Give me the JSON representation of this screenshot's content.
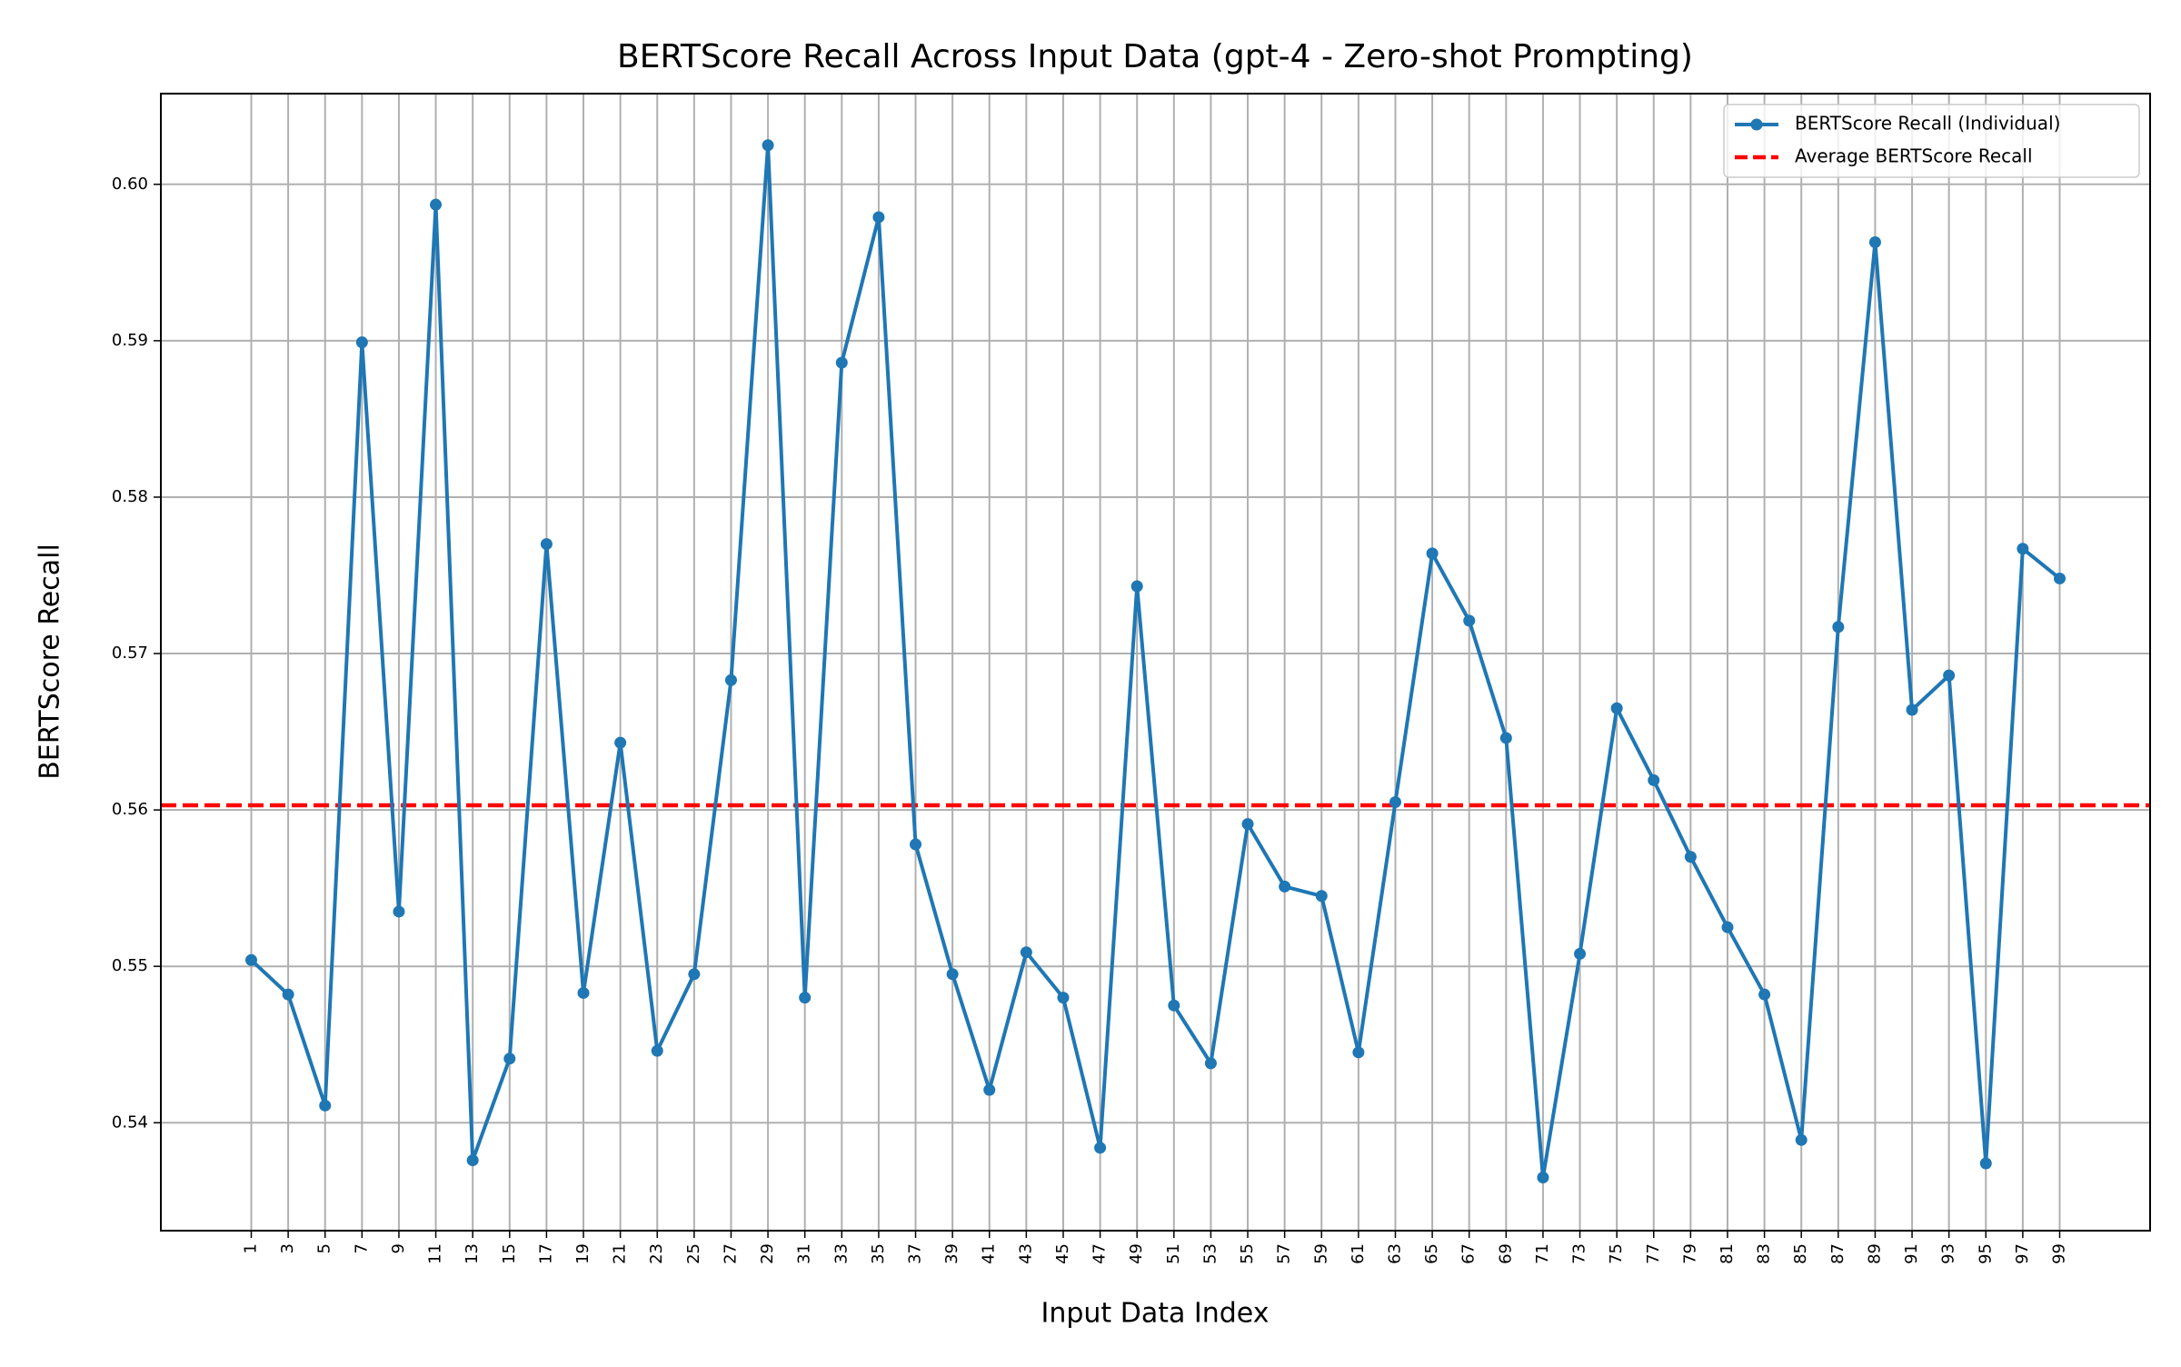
{
  "chart_data": {
    "type": "line",
    "title": "BERTScore Recall Across Input Data (gpt-4 - Zero-shot Prompting)",
    "x_label": "Input Data Index",
    "y_label": "BERTScore Recall",
    "x": [
      1,
      3,
      5,
      7,
      9,
      11,
      13,
      15,
      17,
      19,
      21,
      23,
      25,
      27,
      29,
      31,
      33,
      35,
      37,
      39,
      41,
      43,
      45,
      47,
      49,
      51,
      53,
      55,
      57,
      59,
      61,
      63,
      65,
      67,
      69,
      71,
      73,
      75,
      77,
      79,
      81,
      83,
      85,
      87,
      89,
      91,
      93,
      95,
      97,
      99
    ],
    "series": [
      {
        "name": "BERTScore Recall (Individual)",
        "color": "#1f77b4",
        "values": [
          0.5504,
          0.5482,
          0.5411,
          0.5899,
          0.5535,
          0.5987,
          0.5376,
          0.5441,
          0.577,
          0.5483,
          0.5643,
          0.5446,
          0.5495,
          0.5683,
          0.6025,
          0.548,
          0.5886,
          0.5979,
          0.5578,
          0.5495,
          0.5421,
          0.5509,
          0.548,
          0.5384,
          0.5743,
          0.5475,
          0.5438,
          0.5591,
          0.5551,
          0.5545,
          0.5445,
          0.5605,
          0.5764,
          0.5721,
          0.5646,
          0.5365,
          0.5508,
          0.5665,
          0.5619,
          0.557,
          0.5525,
          0.5482,
          0.5389,
          0.5717,
          0.5963,
          0.5664,
          0.5686,
          0.5374,
          0.5767,
          0.5748
        ]
      }
    ],
    "average": {
      "name": "Average BERTScore Recall",
      "color": "#ff0000",
      "value": 0.5603
    },
    "xlim": [
      -3.9,
      103.9
    ],
    "ylim": [
      0.5331,
      0.6058
    ],
    "xticks": [
      1,
      3,
      5,
      7,
      9,
      11,
      13,
      15,
      17,
      19,
      21,
      23,
      25,
      27,
      29,
      31,
      33,
      35,
      37,
      39,
      41,
      43,
      45,
      47,
      49,
      51,
      53,
      55,
      57,
      59,
      61,
      63,
      65,
      67,
      69,
      71,
      73,
      75,
      77,
      79,
      81,
      83,
      85,
      87,
      89,
      91,
      93,
      95,
      97,
      99
    ],
    "yticks": [
      0.54,
      0.55,
      0.56,
      0.57,
      0.58,
      0.59,
      {
        "value": 0.6,
        "label": "0.60"
      }
    ],
    "grid": true,
    "legend": "upper right"
  }
}
